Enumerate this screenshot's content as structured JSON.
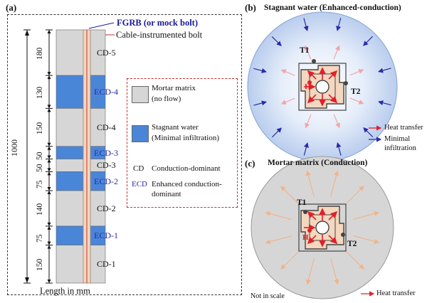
{
  "panel_a": {
    "label": "(a)",
    "fgrb_label": "FGRB (or mock bolt)",
    "cable_label": "Cable-instrumented bolt",
    "total_length": "1000",
    "length_unit": "Length in mm",
    "segments": [
      {
        "name": "CD-5",
        "length": "180",
        "type": "CD"
      },
      {
        "name": "ECD-4",
        "length": "130",
        "type": "ECD"
      },
      {
        "name": "CD-4",
        "length": "150",
        "type": "CD"
      },
      {
        "name": "ECD-3",
        "length": "50",
        "type": "ECD"
      },
      {
        "name": "CD-3",
        "length": "50",
        "type": "CD"
      },
      {
        "name": "ECD-2",
        "length": "75",
        "type": "ECD"
      },
      {
        "name": "CD-2",
        "length": "140",
        "type": "CD"
      },
      {
        "name": "ECD-1",
        "length": "75",
        "type": "ECD"
      },
      {
        "name": "CD-1",
        "length": "150",
        "type": "CD"
      }
    ],
    "legend": {
      "mortar_line1": "Mortar matrix",
      "mortar_line2": "(no flow)",
      "water_line1": "Stagnant water",
      "water_line2": "(Minimal infiltration)",
      "cd_abbr": "CD",
      "cd_text": "Conduction-dominant",
      "ecd_abbr": "ECD",
      "ecd_text_line1": "Enhanced conduction-",
      "ecd_text_line2": "dominant"
    }
  },
  "panel_b": {
    "label": "(b)",
    "title": "Stagnant water (Enhanced-conduction)",
    "t1": "T1",
    "t2": "T2",
    "h": "H",
    "legend_heat": "Heat transfer",
    "legend_infil_line1": "Minimal",
    "legend_infil_line2": "infiltration"
  },
  "panel_c": {
    "label": "(c)",
    "title": "Mortar matrix (Conduction)",
    "t1": "T1",
    "t2": "T2",
    "h": "H",
    "scale_note": "Not in scale",
    "legend_heat": "Heat transfer"
  },
  "colors": {
    "water": "#4a86d8",
    "mortar": "#d6d6d6",
    "ecd_text": "#2a2aa8",
    "heat": "#e0202a",
    "infiltration": "#2a2aa8",
    "fgrb": "#1a1a9a",
    "cable": "#c03030",
    "dash_border": "#c03030"
  }
}
